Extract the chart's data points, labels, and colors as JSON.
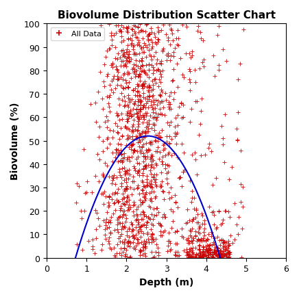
{
  "title": "Biovolume Distribution Scatter Chart",
  "xlabel": "Depth (m)",
  "ylabel": "Biovolume (%)",
  "xlim": [
    0,
    6
  ],
  "ylim": [
    0,
    100
  ],
  "xticks": [
    0,
    1,
    2,
    3,
    4,
    5,
    6
  ],
  "yticks": [
    0,
    10,
    20,
    30,
    40,
    50,
    60,
    70,
    80,
    90,
    100
  ],
  "scatter_color": "#cc0000",
  "curve_color": "#0000cc",
  "legend_label": "All Data",
  "n_points": 1500,
  "seed": 42,
  "curve_x_start": 0.72,
  "curve_x_end": 4.35,
  "curve_y_peak": 52.0
}
